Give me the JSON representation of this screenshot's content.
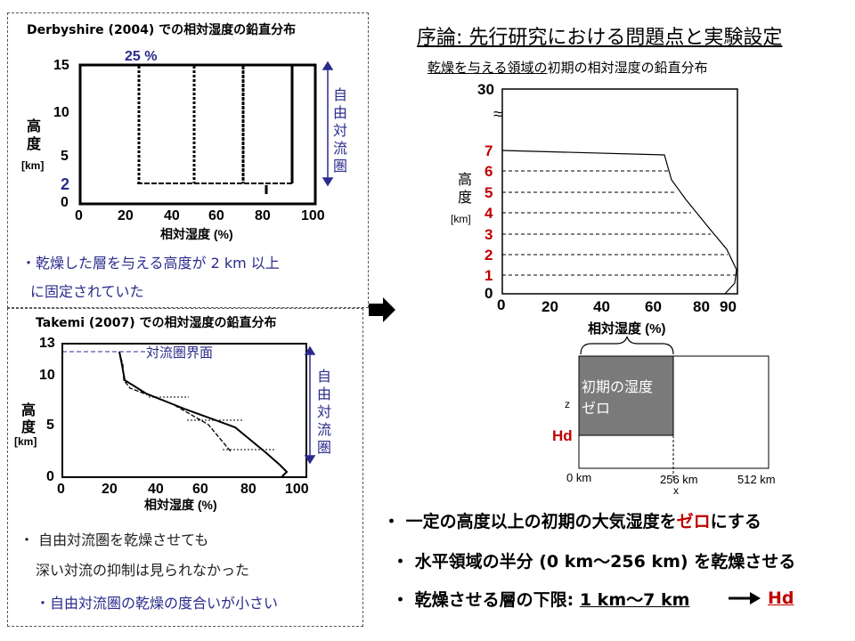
{
  "colors": {
    "red": "#c00000",
    "navy": "#2b2b8c",
    "dark_gray_box": "#7a7a7a"
  },
  "top_left_panel": {
    "title": "Derbyshire (2004) での相対湿度の鉛直分布",
    "top_label": "25 %",
    "ylabel_line1": "高",
    "ylabel_line2": "度",
    "ylabel_unit": "[km]",
    "yticks": [
      "15",
      "10",
      "5",
      "2",
      "0"
    ],
    "xticks": [
      "0",
      "20",
      "40",
      "60",
      "80",
      "100"
    ],
    "xlabel": "相対湿度 (%)",
    "bracket_label": [
      "自",
      "由",
      "対",
      "流",
      "圏"
    ],
    "note_line1": "・乾燥した層を与える高度が 2 km 以上",
    "note_line2": "に固定されていた"
  },
  "bottom_left_panel": {
    "title": "Takemi (2007) での相対湿度の鉛直分布",
    "tropopause_label": "対流圏界面",
    "ylabel_line1": "高",
    "ylabel_line2": "度",
    "ylabel_unit": "[km]",
    "yticks": [
      "13",
      "10",
      "5",
      "0"
    ],
    "xticks": [
      "0",
      "20",
      "40",
      "60",
      "80",
      "100"
    ],
    "xlabel": "相対湿度 (%)",
    "bracket_label": [
      "自",
      "由",
      "対",
      "流",
      "圏"
    ],
    "note_line1": "・ 自由対流圏を乾燥させても",
    "note_line2": "深い対流の抑制は見られなかった",
    "note_line3": "・自由対流圏の乾燥の度合いが小さい"
  },
  "right_panel": {
    "heading": "序論: 先行研究における問題点と実験設定",
    "chart_title_underlined": "乾燥を与える領域の",
    "chart_title_rest": "初期の相対湿度の鉛直分布",
    "y_top": "30",
    "y_break": "≈",
    "red_yticks": [
      "7",
      "6",
      "5",
      "4",
      "3",
      "2",
      "1"
    ],
    "y_zero": "0",
    "ylabel_line1": "高",
    "ylabel_line2": "度",
    "ylabel_unit": "[km]",
    "xticks": [
      "0",
      "20",
      "40",
      "60",
      "80",
      "90"
    ],
    "xlabel": "相対湿度 (%)"
  },
  "domain_diagram": {
    "inner_label_line1": "初期の湿度",
    "inner_label_line2": "ゼロ",
    "z_label": "z",
    "hd_label": "Hd",
    "x0": "0 km",
    "x256": "256 km",
    "x512": "512 km",
    "x_axis_label": "x"
  },
  "bullets": {
    "b1_pre": "・ 一定の高度以上の初期の大気湿度を",
    "b1_red": "ゼロ",
    "b1_post": "にする",
    "b2": "・ 水平領域の半分 (0 km〜256 km) を乾燥させる",
    "b3_pre": "・ 乾燥させる層の下限: ",
    "b3_range": "1 km〜7 km",
    "b3_hd": "Hd"
  },
  "chart_data": [
    {
      "type": "line",
      "title": "Derbyshire (2004) での相対湿度の鉛直分布",
      "xlabel": "相対湿度 (%)",
      "ylabel": "高度 [km]",
      "xlim": [
        0,
        100
      ],
      "ylim": [
        0,
        15
      ],
      "series": [
        {
          "x": [
            25,
            25
          ],
          "y": [
            2,
            15
          ]
        },
        {
          "x": [
            50,
            50
          ],
          "y": [
            2,
            15
          ]
        },
        {
          "x": [
            70,
            70
          ],
          "y": [
            2,
            15
          ]
        },
        {
          "x": [
            90,
            90
          ],
          "y": [
            2,
            15
          ]
        }
      ]
    },
    {
      "type": "line",
      "title": "Takemi (2007) での相対湿度の鉛直分布",
      "xlabel": "相対湿度 (%)",
      "ylabel": "高度 [km]",
      "xlim": [
        0,
        100
      ],
      "ylim": [
        0,
        13
      ],
      "series": [
        {
          "x": [
            25,
            25,
            30,
            50,
            70,
            85,
            95,
            97,
            93
          ],
          "y": [
            12,
            10,
            9.5,
            7.5,
            5,
            2.5,
            1,
            0.5,
            0
          ]
        },
        {
          "x": [
            25,
            25,
            40,
            60,
            70
          ],
          "y": [
            12,
            10,
            8,
            5,
            2.5
          ]
        }
      ]
    },
    {
      "type": "line",
      "title": "乾燥を与える領域の初期の相対湿度の鉛直分布",
      "xlabel": "相対湿度 (%)",
      "ylabel": "高度 [km]",
      "xlim": [
        0,
        90
      ],
      "ylim": [
        0,
        7
      ],
      "series": [
        {
          "x": [
            0,
            66,
            70,
            77,
            84,
            88,
            90,
            89,
            85
          ],
          "y": [
            7,
            6.8,
            5.5,
            4.5,
            3,
            2,
            1,
            0.4,
            0
          ]
        },
        {
          "x": [
            0,
            66
          ],
          "y": [
            6,
            6
          ]
        },
        {
          "x": [
            0,
            70
          ],
          "y": [
            5,
            5
          ]
        },
        {
          "x": [
            0,
            76
          ],
          "y": [
            4,
            4
          ]
        },
        {
          "x": [
            0,
            82
          ],
          "y": [
            3,
            3
          ]
        },
        {
          "x": [
            0,
            87
          ],
          "y": [
            2,
            2
          ]
        },
        {
          "x": [
            0,
            89
          ],
          "y": [
            1,
            1
          ]
        }
      ]
    }
  ]
}
